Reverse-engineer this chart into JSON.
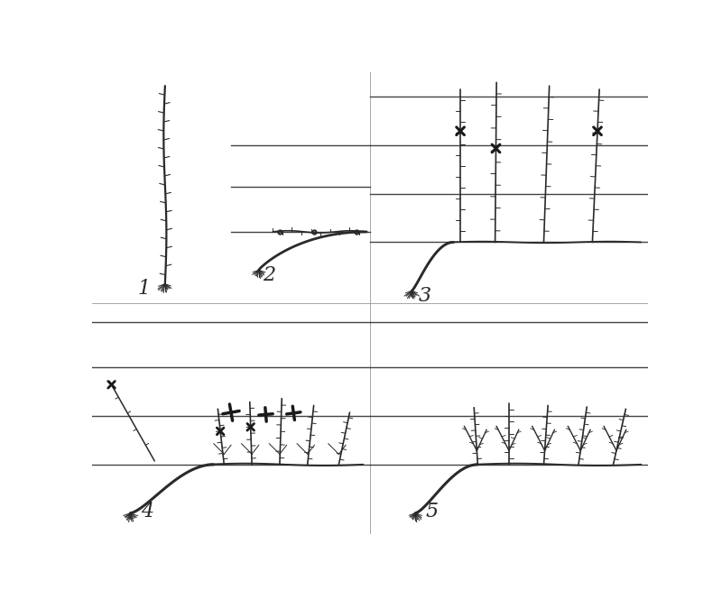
{
  "bg_color": "#ffffff",
  "line_color": "#2a2a2a",
  "wire_color": "#3a3a3a",
  "label_fontsize": 16,
  "wire_linewidth": 1.0,
  "vine_linewidth": 1.6,
  "thin_linewidth": 0.9,
  "divider_color": "#999999"
}
